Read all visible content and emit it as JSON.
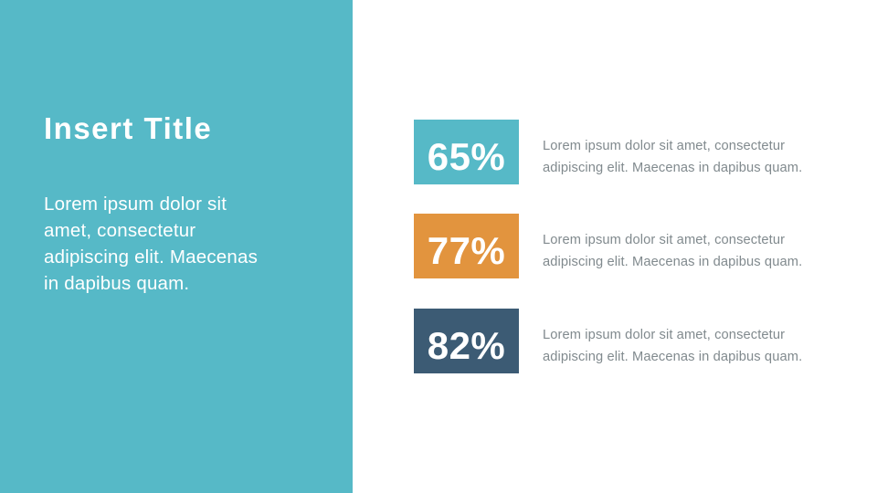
{
  "panel": {
    "title": "Insert Title",
    "body": "Lorem ipsum dolor sit amet, consectetur adipiscing elit. Maecenas in dapibus quam.",
    "bg_color": "#56b9c7",
    "text_color": "#ffffff"
  },
  "stats": [
    {
      "value": "65%",
      "box_color": "#56b9c7",
      "desc_lines": [
        "Lorem ipsum dolor sit amet, consectetur",
        "adipiscing elit. Maecenas in dapibus quam."
      ]
    },
    {
      "value": "77%",
      "box_color": "#e2943e",
      "desc_lines": [
        "Lorem ipsum dolor sit amet, consectetur",
        "adipiscing elit. Maecenas in dapibus quam."
      ]
    },
    {
      "value": "82%",
      "box_color": "#3c5b74",
      "desc_lines": [
        "Lorem ipsum dolor sit amet, consectetur",
        "adipiscing elit. Maecenas in dapibus quam."
      ]
    }
  ],
  "colors": {
    "slide_background": "#ffffff",
    "description_text": "#818a8e",
    "value_text": "#ffffff"
  }
}
